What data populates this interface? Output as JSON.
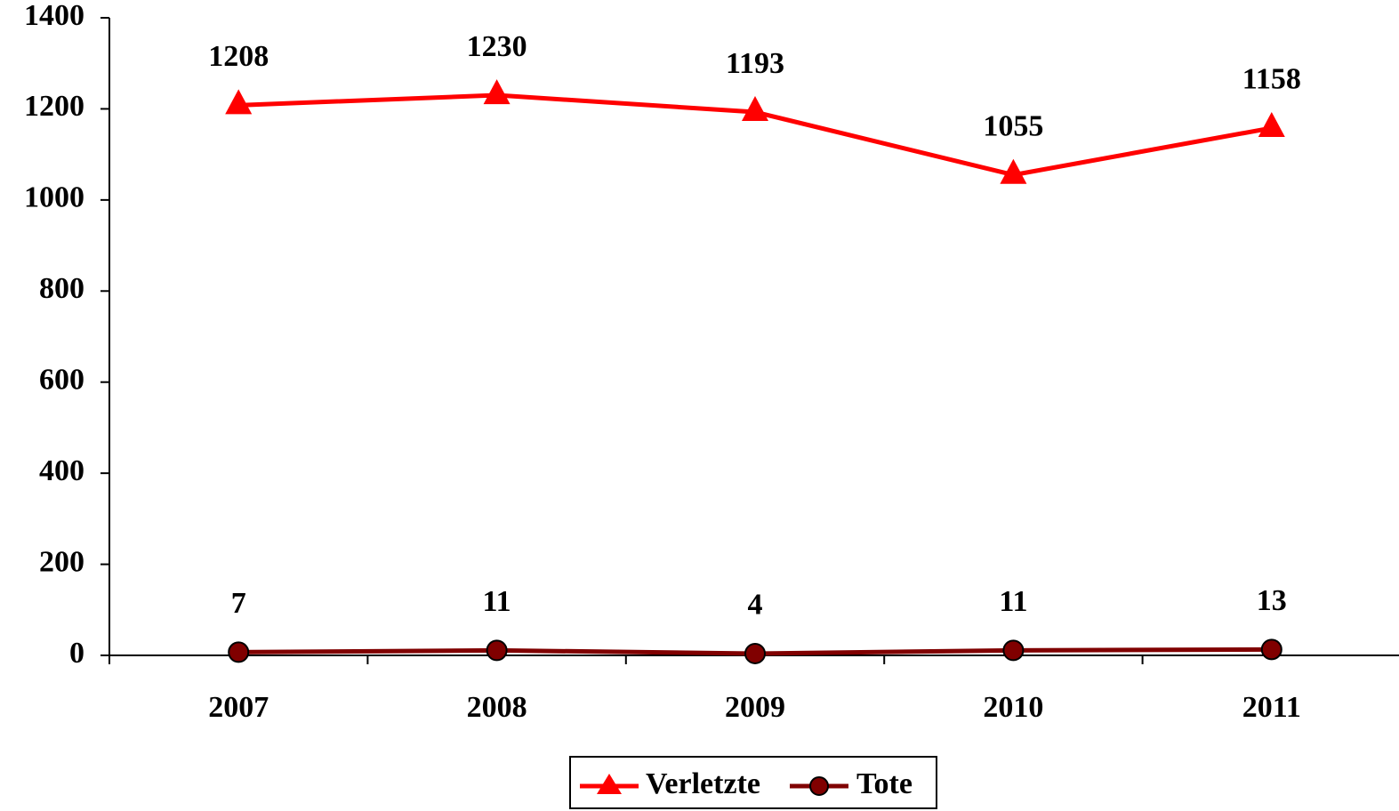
{
  "chart_data": {
    "type": "line",
    "categories": [
      "2007",
      "2008",
      "2009",
      "2010",
      "2011"
    ],
    "series": [
      {
        "name": "Verletzte",
        "color": "#ff0000",
        "marker": "triangle",
        "values": [
          1208,
          1230,
          1193,
          1055,
          1158
        ]
      },
      {
        "name": "Tote",
        "color": "#800000",
        "marker": "circle",
        "values": [
          7,
          11,
          4,
          11,
          13
        ]
      }
    ],
    "ylim": [
      0,
      1400
    ],
    "yticks": [
      0,
      200,
      400,
      600,
      800,
      1000,
      1200,
      1400
    ],
    "grid": false,
    "legend": "bottom"
  }
}
